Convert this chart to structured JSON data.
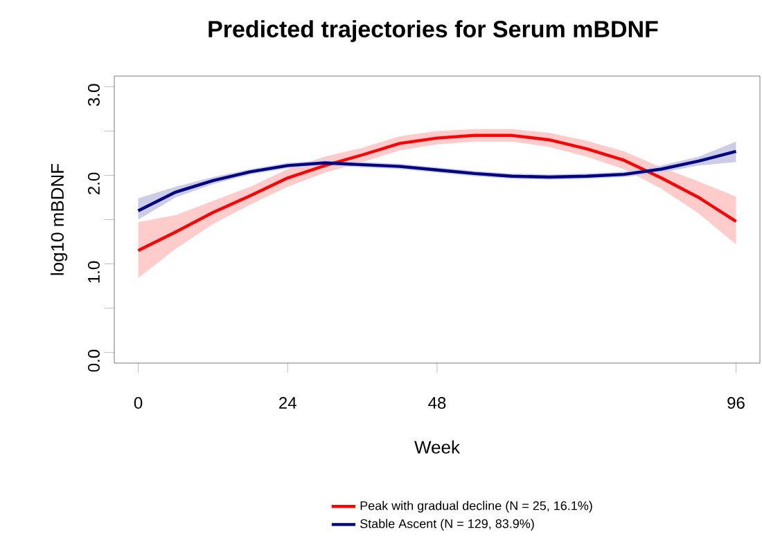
{
  "chart_data": {
    "type": "line",
    "title": "Predicted trajectories for Serum mBDNF",
    "xlabel": "Week",
    "ylabel": "log10 mBDNF",
    "x": [
      0,
      6,
      12,
      18,
      24,
      30,
      36,
      42,
      48,
      54,
      60,
      66,
      72,
      78,
      84,
      90,
      96
    ],
    "series": [
      {
        "name": "Peak with gradual decline (N = 25, 16.1%)",
        "color": "#ff0000",
        "values": [
          1.15,
          1.36,
          1.58,
          1.77,
          1.97,
          2.11,
          2.23,
          2.36,
          2.42,
          2.45,
          2.45,
          2.4,
          2.3,
          2.17,
          1.97,
          1.75,
          1.48
        ],
        "lower": [
          0.84,
          1.17,
          1.45,
          1.67,
          1.87,
          2.03,
          2.15,
          2.28,
          2.35,
          2.38,
          2.38,
          2.32,
          2.21,
          2.07,
          1.85,
          1.57,
          1.22
        ],
        "upper": [
          1.47,
          1.55,
          1.71,
          1.87,
          2.07,
          2.21,
          2.31,
          2.44,
          2.5,
          2.52,
          2.52,
          2.48,
          2.39,
          2.27,
          2.09,
          1.93,
          1.76
        ]
      },
      {
        "name": "Stable Ascent (N = 129, 83.9%)",
        "color": "#000080",
        "values": [
          1.6,
          1.81,
          1.94,
          2.04,
          2.11,
          2.14,
          2.12,
          2.1,
          2.06,
          2.02,
          1.99,
          1.98,
          1.99,
          2.01,
          2.07,
          2.16,
          2.27
        ],
        "lower": [
          1.5,
          1.75,
          1.9,
          2.01,
          2.08,
          2.11,
          2.09,
          2.07,
          2.03,
          1.99,
          1.96,
          1.95,
          1.96,
          1.98,
          2.03,
          2.11,
          2.15
        ],
        "upper": [
          1.74,
          1.87,
          1.98,
          2.07,
          2.14,
          2.17,
          2.15,
          2.13,
          2.09,
          2.05,
          2.02,
          2.01,
          2.02,
          2.04,
          2.11,
          2.21,
          2.38
        ]
      }
    ],
    "xlim": [
      -3.84,
      99.84
    ],
    "ylim": [
      -0.12,
      3.12
    ],
    "xticks": [
      0,
      24,
      48,
      96
    ],
    "yticks": [
      {
        "value": 0,
        "label": "0.0"
      },
      {
        "value": 0.5,
        "label": null
      },
      {
        "value": 1,
        "label": "1.0"
      },
      {
        "value": 1.5,
        "label": null
      },
      {
        "value": 2,
        "label": "2.0"
      },
      {
        "value": 2.5,
        "label": null
      },
      {
        "value": 3,
        "label": "3.0"
      }
    ],
    "legend": "bottom",
    "grid": false,
    "marker": "none",
    "line_style": "solid"
  }
}
